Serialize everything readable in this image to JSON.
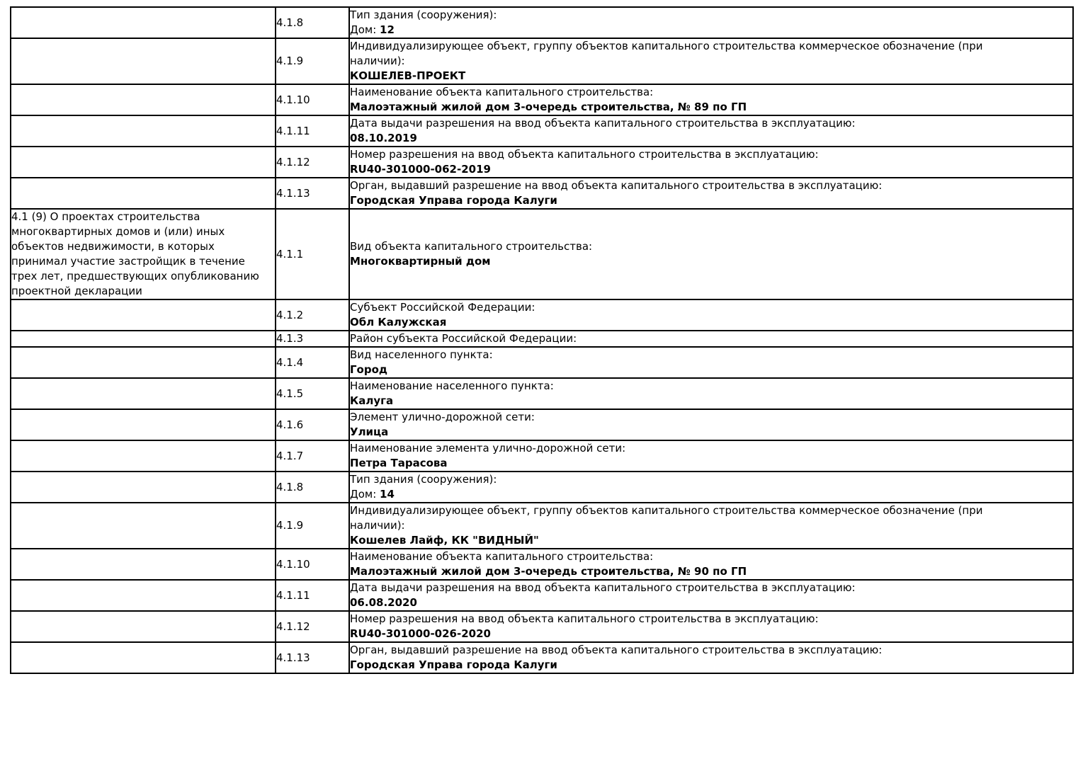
{
  "colors": {
    "background": "#ffffff",
    "border": "#000000",
    "text": "#000000"
  },
  "table": {
    "rows": [
      {
        "section": "",
        "code": "4.1.8",
        "label": "Тип здания (сооружения):",
        "value_prefix": "Дом: ",
        "value": "12"
      },
      {
        "section": "",
        "code": "4.1.9",
        "label": "Индивидуализирующее объект, группу объектов капитального строительства коммерческое обозначение (при\nналичии):",
        "value_prefix": "",
        "value": "КОШЕЛЕВ-ПРОЕКТ"
      },
      {
        "section": "",
        "code": "4.1.10",
        "label": "Наименование объекта капитального строительства:",
        "value_prefix": "",
        "value": "Малоэтажный жилой дом 3-очередь строительства, № 89 по ГП"
      },
      {
        "section": "",
        "code": "4.1.11",
        "label": "Дата выдачи разрешения на ввод объекта капитального строительства в эксплуатацию:",
        "value_prefix": "",
        "value": "08.10.2019"
      },
      {
        "section": "",
        "code": "4.1.12",
        "label": "Номер разрешения на ввод объекта капитального строительства в эксплуатацию:",
        "value_prefix": "",
        "value": "RU40-301000-062-2019"
      },
      {
        "section": "",
        "code": "4.1.13",
        "label": "Орган, выдавший разрешение на ввод объекта капитального строительства в эксплуатацию:",
        "value_prefix": "",
        "value": "Городская Управа города Калуги"
      },
      {
        "section": "4.1 (9) О проектах строительства\nмногоквартирных домов и (или) иных\nобъектов недвижимости, в которых\nпринимал участие застройщик в течение\nтрех лет, предшествующих опубликованию\nпроектной декларации",
        "code": "4.1.1",
        "label": "Вид объекта капитального строительства:",
        "value_prefix": "",
        "value": "Многоквартирный дом"
      },
      {
        "section": "",
        "code": "4.1.2",
        "label": "Субъект Российской Федерации:",
        "value_prefix": "",
        "value": "Обл Калужская"
      },
      {
        "section": "",
        "code": "4.1.3",
        "label": "Район субъекта Российской Федерации:",
        "value_prefix": "",
        "value": ""
      },
      {
        "section": "",
        "code": "4.1.4",
        "label": "Вид населенного пункта:",
        "value_prefix": "",
        "value": "Город"
      },
      {
        "section": "",
        "code": "4.1.5",
        "label": "Наименование населенного пункта:",
        "value_prefix": "",
        "value": "Калуга"
      },
      {
        "section": "",
        "code": "4.1.6",
        "label": "Элемент улично-дорожной сети:",
        "value_prefix": "",
        "value": "Улица"
      },
      {
        "section": "",
        "code": "4.1.7",
        "label": "Наименование элемента улично-дорожной сети:",
        "value_prefix": "",
        "value": "Петра Тарасова"
      },
      {
        "section": "",
        "code": "4.1.8",
        "label": "Тип здания (сооружения):",
        "value_prefix": "Дом: ",
        "value": "14"
      },
      {
        "section": "",
        "code": "4.1.9",
        "label": "Индивидуализирующее объект, группу объектов капитального строительства коммерческое обозначение (при\nналичии):",
        "value_prefix": "",
        "value": "Кошелев Лайф, КК \"ВИДНЫЙ\""
      },
      {
        "section": "",
        "code": "4.1.10",
        "label": "Наименование объекта капитального строительства:",
        "value_prefix": "",
        "value": "Малоэтажный жилой дом 3-очередь строительства, № 90 по ГП"
      },
      {
        "section": "",
        "code": "4.1.11",
        "label": "Дата выдачи разрешения на ввод объекта капитального строительства в эксплуатацию:",
        "value_prefix": "",
        "value": "06.08.2020"
      },
      {
        "section": "",
        "code": "4.1.12",
        "label": "Номер разрешения на ввод объекта капитального строительства в эксплуатацию:",
        "value_prefix": "",
        "value": "RU40-301000-026-2020"
      },
      {
        "section": "",
        "code": "4.1.13",
        "label": "Орган, выдавший разрешение на ввод объекта капитального строительства в эксплуатацию:",
        "value_prefix": "",
        "value": "Городская Управа города Калуги"
      }
    ]
  }
}
